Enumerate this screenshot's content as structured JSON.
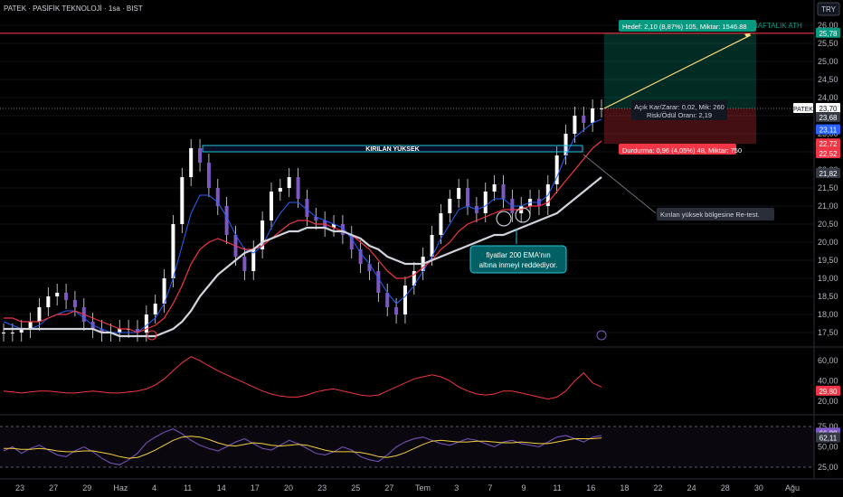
{
  "header": {
    "title": "PATEK · PASİFİK TEKNOLOJİ · 1sa · BIST",
    "currency": "TRY"
  },
  "chart_data": [
    {
      "type": "line",
      "description": "price panel",
      "y_ticks": [
        "26,00",
        "25,50",
        "25,00",
        "24,50",
        "24,00",
        "23,50",
        "23,00",
        "22,50",
        "22,00",
        "21,50",
        "21,00",
        "20,50",
        "20,00",
        "19,50",
        "19,00",
        "18,50",
        "18,00",
        "17,50"
      ],
      "ylim": [
        17.2,
        26.2
      ],
      "x_ticks": [
        "23",
        "27",
        "29",
        "Haz",
        "4",
        "11",
        "14",
        "17",
        "20",
        "23",
        "25",
        "27",
        "Tem",
        "3",
        "7",
        "9",
        "11",
        "16",
        "18",
        "22",
        "24",
        "28",
        "30",
        "Ağu"
      ],
      "series": [
        {
          "role": "price",
          "values": [
            17.5,
            17.5,
            17.6,
            17.8,
            18.2,
            18.5,
            18.6,
            18.4,
            18.2,
            17.8,
            17.6,
            17.5,
            17.5,
            17.6,
            17.6,
            17.5,
            18.0,
            18.3,
            19.0,
            20.5,
            21.8,
            22.6,
            22.2,
            21.5,
            21.0,
            20.2,
            19.6,
            19.2,
            19.8,
            20.6,
            21.4,
            21.5,
            21.8,
            21.2,
            20.7,
            20.6,
            20.4,
            20.5,
            20.2,
            19.8,
            19.4,
            19.2,
            18.6,
            18.2,
            18.0,
            18.8,
            19.2,
            19.6,
            20.2,
            20.8,
            21.2,
            21.5,
            21.0,
            20.8,
            21.4,
            21.6,
            21.2,
            20.8,
            21.0,
            21.2,
            21.0,
            21.6,
            22.4,
            23.0,
            23.5,
            23.3,
            23.7,
            23.7
          ]
        },
        {
          "role": "ema_fast",
          "values": [
            17.8,
            17.7,
            17.6,
            17.6,
            17.7,
            17.9,
            18.0,
            18.1,
            18.1,
            17.9,
            17.7,
            17.6,
            17.5,
            17.5,
            17.5,
            17.5,
            17.7,
            17.9,
            18.3,
            19.0,
            19.9,
            20.8,
            21.3,
            21.3,
            21.1,
            20.7,
            20.2,
            19.8,
            19.7,
            19.9,
            20.4,
            20.8,
            21.1,
            21.1,
            20.9,
            20.7,
            20.6,
            20.5,
            20.4,
            20.1,
            19.7,
            19.4,
            19.0,
            18.6,
            18.3,
            18.5,
            18.8,
            19.2,
            19.6,
            20.1,
            20.5,
            20.9,
            21.0,
            20.9,
            21.0,
            21.2,
            21.2,
            21.0,
            21.0,
            21.1,
            21.1,
            21.3,
            21.8,
            22.4,
            22.9,
            23.1,
            23.3,
            23.4
          ]
        },
        {
          "role": "ema_mid",
          "values": [
            17.9,
            17.9,
            17.8,
            17.8,
            17.8,
            17.9,
            18.0,
            18.0,
            18.1,
            18.0,
            17.9,
            17.8,
            17.7,
            17.6,
            17.6,
            17.5,
            17.6,
            17.7,
            17.9,
            18.3,
            18.8,
            19.4,
            19.8,
            20.0,
            20.1,
            20.0,
            19.9,
            19.8,
            19.8,
            19.9,
            20.1,
            20.3,
            20.5,
            20.6,
            20.6,
            20.5,
            20.5,
            20.4,
            20.3,
            20.2,
            20.0,
            19.8,
            19.5,
            19.2,
            19.0,
            19.0,
            19.1,
            19.3,
            19.5,
            19.8,
            20.0,
            20.3,
            20.5,
            20.6,
            20.7,
            20.8,
            20.9,
            20.9,
            20.9,
            21.0,
            21.0,
            21.1,
            21.4,
            21.7,
            22.0,
            22.3,
            22.6,
            22.8
          ]
        },
        {
          "role": "ema200",
          "values": [
            17.6,
            17.6,
            17.6,
            17.6,
            17.6,
            17.6,
            17.6,
            17.6,
            17.6,
            17.6,
            17.6,
            17.5,
            17.5,
            17.4,
            17.4,
            17.4,
            17.4,
            17.4,
            17.5,
            17.6,
            17.8,
            18.1,
            18.5,
            18.8,
            19.1,
            19.3,
            19.5,
            19.7,
            19.8,
            20.0,
            20.1,
            20.2,
            20.3,
            20.3,
            20.4,
            20.4,
            20.4,
            20.3,
            20.3,
            20.2,
            20.1,
            19.9,
            19.8,
            19.6,
            19.5,
            19.4,
            19.4,
            19.4,
            19.5,
            19.6,
            19.7,
            19.8,
            19.9,
            20.0,
            20.1,
            20.2,
            20.2,
            20.3,
            20.4,
            20.5,
            20.6,
            20.7,
            20.8,
            21.0,
            21.2,
            21.4,
            21.6,
            21.8
          ]
        }
      ],
      "price_labels": [
        {
          "text": "25,78",
          "color": "#089981"
        },
        {
          "text": "PATEK",
          "color": "#ffffff"
        },
        {
          "text": "23,70",
          "color": "#ffffff"
        },
        {
          "text": "23,68",
          "color": "#363a45"
        },
        {
          "text": "23,11",
          "color": "#2962ff"
        },
        {
          "text": "22,72",
          "color": "#f23645"
        },
        {
          "text": "22,52",
          "color": "#f23645"
        },
        {
          "text": "21,82",
          "color": "#363a45"
        }
      ],
      "annotations": {
        "target": "Hedef: 2,10 (8,87%) 105, Miktar: 1546.88",
        "weekly_ath": "HAFTALIK ATH",
        "open_pnl_line1": "Açık Kar/Zarar: 0,02, Mik: 260",
        "open_pnl_line2": "Risk/Ödül Oranı: 2,19",
        "stop": "Durdurma: 0,96 (4,05%) 48, Miktar: 750",
        "broken_high": "KIRILAN YÜKSEK",
        "retest": "Kırılan yüksek bölgesine Re-test.",
        "ema_note_line1": "fiyatlar 200 EMA'nın",
        "ema_note_line2": "altına inmeyi reddediyor."
      },
      "risk_reward": {
        "entry": 23.7,
        "target": 25.78,
        "stop": 22.72,
        "broken_high": 22.6
      }
    },
    {
      "type": "line",
      "description": "indicator panel 1",
      "y_ticks": [
        "60,00",
        "40,00",
        "20,00"
      ],
      "ylim": [
        10,
        70
      ],
      "series": [
        {
          "role": "adx",
          "values": [
            30,
            29,
            28,
            29,
            30,
            30,
            29,
            28,
            28,
            29,
            30,
            29,
            28,
            28,
            29,
            30,
            32,
            36,
            42,
            50,
            58,
            64,
            60,
            55,
            50,
            46,
            42,
            38,
            34,
            30,
            27,
            25,
            24,
            24,
            26,
            29,
            31,
            32,
            30,
            28,
            26,
            25,
            26,
            30,
            34,
            38,
            42,
            44,
            46,
            44,
            40,
            34,
            30,
            27,
            26,
            27,
            30,
            30,
            28,
            26,
            24,
            22,
            24,
            30,
            40,
            48,
            38,
            34
          ]
        }
      ],
      "price_labels": [
        {
          "text": "29,80",
          "color": "#f23645"
        }
      ]
    },
    {
      "type": "line",
      "description": "indicator panel 2 (RSI)",
      "y_ticks": [
        "75,00",
        "50,00",
        "25,00"
      ],
      "ylim": [
        15,
        85
      ],
      "series": [
        {
          "role": "rsi",
          "values": [
            45,
            50,
            42,
            48,
            52,
            46,
            40,
            38,
            45,
            50,
            44,
            36,
            30,
            28,
            34,
            42,
            55,
            62,
            68,
            72,
            66,
            58,
            52,
            48,
            45,
            50,
            56,
            60,
            54,
            48,
            46,
            52,
            58,
            54,
            48,
            42,
            40,
            44,
            50,
            46,
            38,
            34,
            32,
            40,
            50,
            56,
            60,
            62,
            58,
            54,
            52,
            56,
            60,
            58,
            54,
            50,
            56,
            58,
            54,
            52,
            50,
            56,
            62,
            64,
            60,
            56,
            62,
            64
          ]
        },
        {
          "role": "rsi_ma",
          "values": [
            48,
            48,
            47,
            47,
            48,
            47,
            45,
            44,
            44,
            45,
            45,
            43,
            41,
            38,
            36,
            37,
            41,
            46,
            52,
            58,
            62,
            63,
            62,
            59,
            55,
            52,
            51,
            53,
            55,
            54,
            52,
            51,
            52,
            53,
            52,
            49,
            46,
            44,
            44,
            44,
            43,
            41,
            38,
            37,
            39,
            43,
            48,
            53,
            57,
            58,
            57,
            56,
            56,
            57,
            57,
            56,
            55,
            55,
            56,
            55,
            54,
            54,
            56,
            58,
            60,
            60,
            60,
            61
          ]
        }
      ],
      "price_labels": [
        {
          "text": "66,88",
          "color": "#7e57c2"
        },
        {
          "text": "62,11",
          "color": "#363a45"
        }
      ]
    }
  ]
}
